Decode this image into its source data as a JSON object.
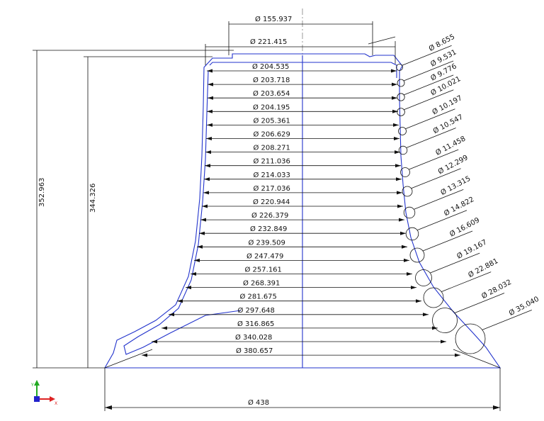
{
  "dimensions": {
    "overall_height": "352.963",
    "inner_height": "344.326",
    "top_flange_diameter": "Ø 155.937",
    "top_outer_diameter": "Ø 221.415",
    "base_diameter": "Ø 438"
  },
  "inner_diameters": [
    "204.535",
    "203.718",
    "203.654",
    "204.195",
    "205.361",
    "206.629",
    "208.271",
    "211.036",
    "214.033",
    "217.036",
    "220.944",
    "226.379",
    "232.849",
    "239.509",
    "247.479",
    "257.161",
    "268.391",
    "281.675",
    "297.648",
    "316.865",
    "340.028",
    "380.657"
  ],
  "wall_circles": [
    "8.655",
    "9.531",
    "9.776",
    "10.021",
    "10.197",
    "10.547",
    "11.458",
    "12.299",
    "13.315",
    "14.822",
    "16.609",
    "19.167",
    "22.881",
    "28.032",
    "35.040"
  ],
  "diameter_symbol": "Ø",
  "triad": {
    "x_label": "X",
    "y_label": "Y"
  },
  "colors": {
    "profile": "#2233cc",
    "dimension": "#111111",
    "triad_x": "#d22",
    "triad_y": "#2a2",
    "triad_z": "#22c"
  }
}
